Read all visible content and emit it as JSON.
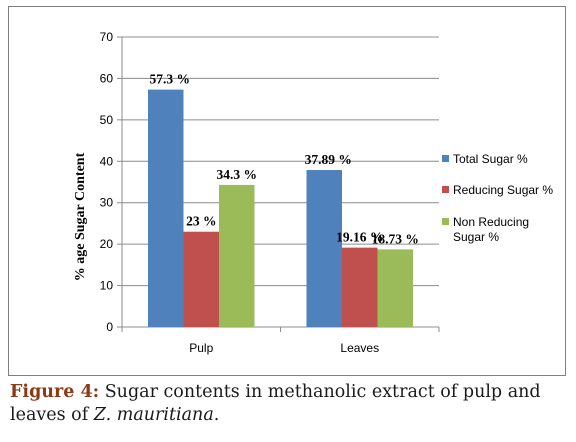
{
  "chart_data": {
    "type": "bar",
    "categories": [
      "Pulp",
      "Leaves"
    ],
    "series": [
      {
        "name": "Total Sugar %",
        "values": [
          57.3,
          37.89
        ],
        "labels": [
          "57.3 %",
          "37.89 %"
        ],
        "color": "#4f81bd"
      },
      {
        "name": "Reducing Sugar %",
        "values": [
          23,
          19.16
        ],
        "labels": [
          "23 %",
          "19.16 %"
        ],
        "color": "#c0504d"
      },
      {
        "name": "Non Reducing Sugar %",
        "values": [
          34.3,
          18.73
        ],
        "labels": [
          "34.3 %",
          "18.73 %"
        ],
        "color": "#9bbb59"
      }
    ],
    "ylabel": "% age  Sugar Content",
    "xlabel": "",
    "ylim": [
      0,
      70
    ],
    "yticks": [
      0,
      10,
      20,
      30,
      40,
      50,
      60,
      70
    ],
    "grid": true,
    "legend": "right"
  },
  "caption": {
    "label": "Figure 4:",
    "text": " Sugar contents in methanolic extract of pulp and leaves of ",
    "species": "Z. mauritiana",
    "end": "."
  }
}
